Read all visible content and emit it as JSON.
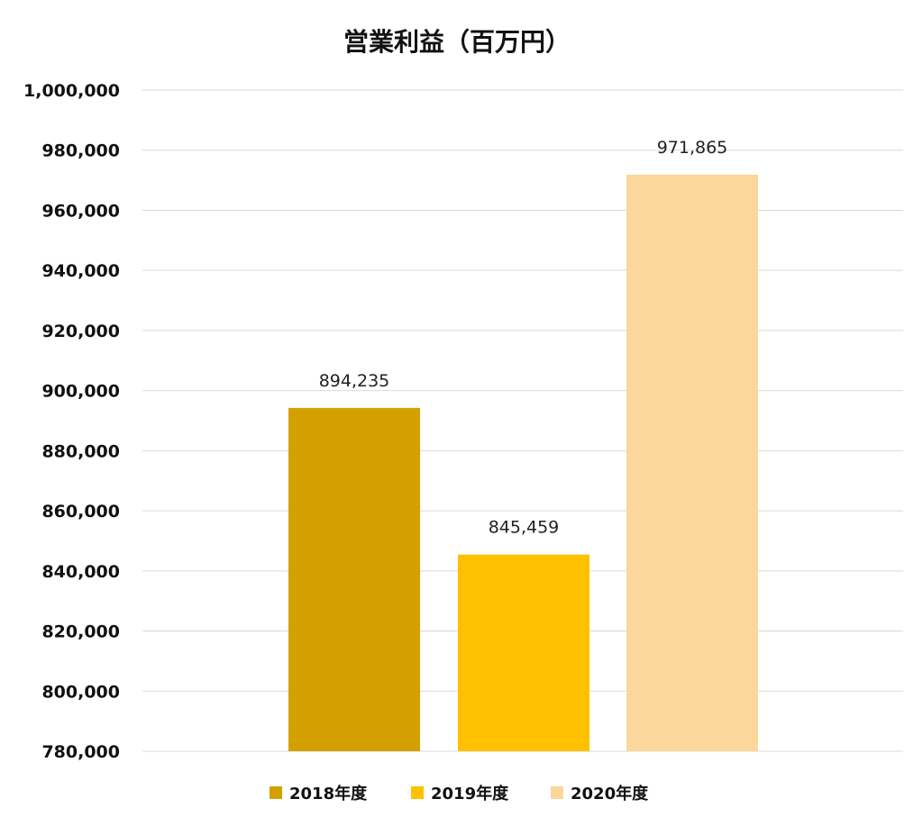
{
  "chart_data": {
    "type": "bar",
    "title": "営業利益（百万円）",
    "xlabel": "",
    "ylabel": "",
    "categories": [
      "2018年度",
      "2019年度",
      "2020年度"
    ],
    "values": [
      894235,
      845459,
      971865
    ],
    "data_labels": [
      "894,235",
      "845,459",
      "971,865"
    ],
    "colors": [
      "#d4a000",
      "#ffc000",
      "#fbd79b"
    ],
    "ylim": [
      780000,
      1000000
    ],
    "yticks": [
      780000,
      800000,
      820000,
      840000,
      860000,
      880000,
      900000,
      920000,
      940000,
      960000,
      980000,
      1000000
    ],
    "ytick_labels": [
      "780,000",
      "800,000",
      "820,000",
      "840,000",
      "860,000",
      "880,000",
      "900,000",
      "920,000",
      "940,000",
      "960,000",
      "980,000",
      "1,000,000"
    ],
    "grid": true,
    "legend": {
      "position": "bottom",
      "entries": [
        "2018年度",
        "2019年度",
        "2020年度"
      ]
    }
  }
}
